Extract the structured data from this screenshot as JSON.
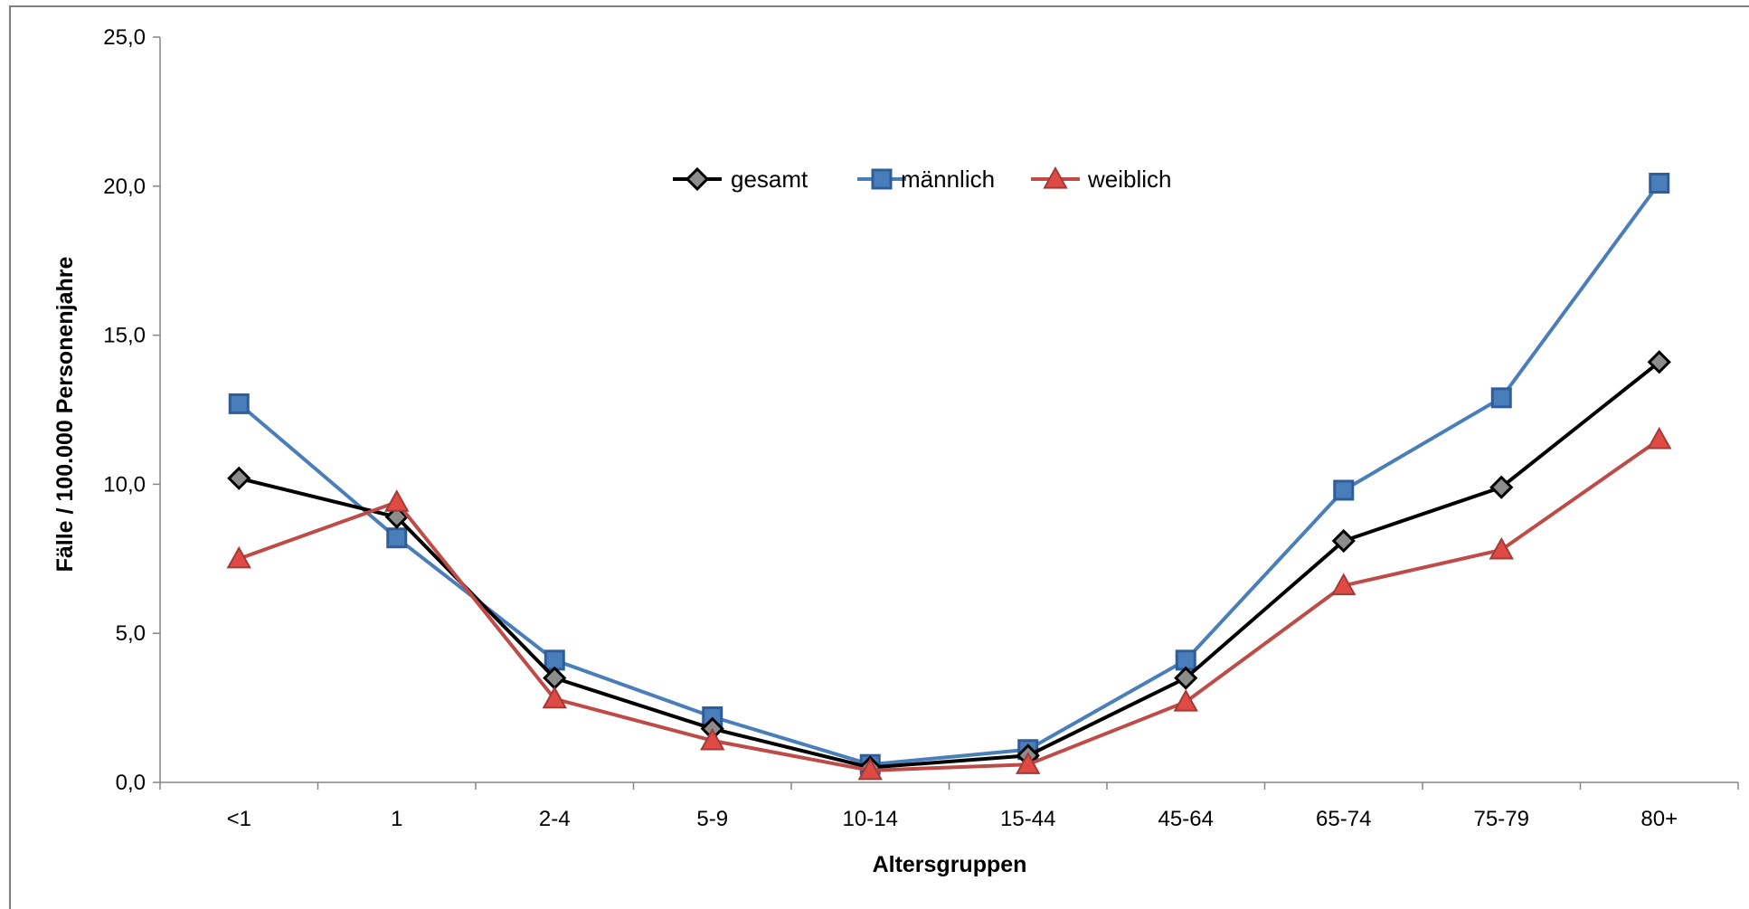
{
  "chart_data": {
    "type": "line",
    "xlabel": "Altersgruppen",
    "ylabel": "Fälle / 100.000 Personenjahre",
    "ylim": [
      0,
      25
    ],
    "yticks": [
      "0,0",
      "5,0",
      "10,0",
      "15,0",
      "20,0",
      "25,0"
    ],
    "ytick_values": [
      0,
      5,
      10,
      15,
      20,
      25
    ],
    "categories": [
      "<1",
      "1",
      "2-4",
      "5-9",
      "10-14",
      "15-44",
      "45-64",
      "65-74",
      "75-79",
      "80+"
    ],
    "legend_position": "top-center",
    "grid": false,
    "series": [
      {
        "name": "gesamt",
        "color": "#000000",
        "marker": "diamond",
        "values": [
          10.2,
          8.9,
          3.5,
          1.8,
          0.5,
          0.9,
          3.5,
          8.1,
          9.9,
          14.1
        ]
      },
      {
        "name": "männlich",
        "color": "#4a7ebb",
        "marker": "square",
        "values": [
          12.7,
          8.2,
          4.1,
          2.2,
          0.6,
          1.1,
          4.1,
          9.8,
          12.9,
          20.1
        ]
      },
      {
        "name": "weiblich",
        "color": "#be4b48",
        "marker": "triangle",
        "values": [
          7.5,
          9.4,
          2.8,
          1.4,
          0.4,
          0.6,
          2.7,
          6.6,
          7.8,
          11.5
        ]
      }
    ]
  }
}
